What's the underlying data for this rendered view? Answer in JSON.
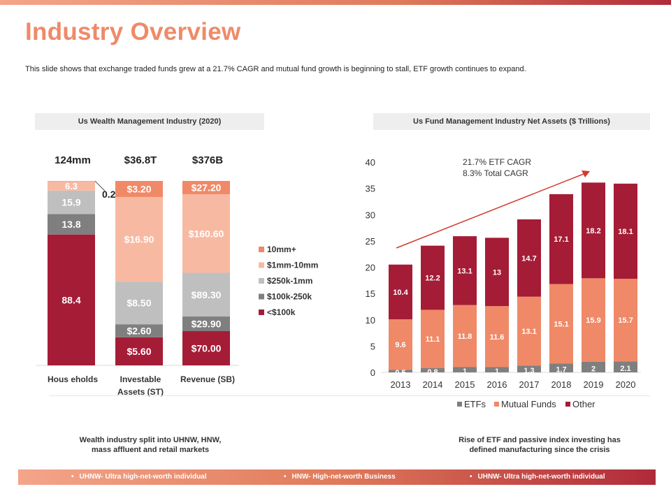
{
  "title": "Industry Overview",
  "subtitle": "This slide shows that exchange traded funds grew at a 21.7% CAGR and mutual fund growth is beginning to stall, ETF growth continues to expand.",
  "colors": {
    "accent": "#ef8a68",
    "lt100k": "#a51c36",
    "k100_250": "#7f7f7f",
    "k250_1m": "#bfbfbf",
    "m1_10": "#f8b9a2",
    "m10plus": "#f08967",
    "etf": "#7f7f7f",
    "mutual": "#f08967",
    "other": "#a51c36"
  },
  "left_panel": {
    "header": "Us Wealth Management Industry (2020)",
    "caption_line1": "Wealth industry split into UHNW, HNW,",
    "caption_line2": "mass affluent and retail markets"
  },
  "right_panel": {
    "header": "Us Fund Management Industry Net Assets ($ Trillions)",
    "caption_line1": "Rise of ETF and passive index investing has",
    "caption_line2": "defined manufacturing since the crisis"
  },
  "footer": {
    "items": [
      "UHNW- Ultra high-net-worth individual",
      "HNW- High-net-worth Business",
      "UHNW- Ultra high-net-worth individual"
    ]
  },
  "chart_data": [
    {
      "type": "bar",
      "stacked": true,
      "normalized": true,
      "title": "Us Wealth Management Industry (2020)",
      "categories": [
        "Hous eholds",
        "Investable Assets (ST)",
        "Revenue (SB)"
      ],
      "category_label_lines": [
        [
          "Hous eholds"
        ],
        [
          "Investable",
          "Assets (ST)"
        ],
        [
          "Revenue (SB)"
        ]
      ],
      "totals": [
        "124mm",
        "$36.8T",
        "$376B"
      ],
      "series": [
        {
          "name": "<$100k",
          "values": [
            88.4,
            5.6,
            70.0
          ],
          "labels": [
            "88.4",
            "$5.60",
            "$70.00"
          ]
        },
        {
          "name": "$100k-250k",
          "values": [
            13.8,
            2.6,
            29.9
          ],
          "labels": [
            "13.8",
            "$2.60",
            "$29.90"
          ]
        },
        {
          "name": "$250k-1mm",
          "values": [
            15.9,
            8.5,
            89.3
          ],
          "labels": [
            "15.9",
            "$8.50",
            "$89.30"
          ]
        },
        {
          "name": "$1mm-10mm",
          "values": [
            6.3,
            16.9,
            160.6
          ],
          "labels": [
            "6.3",
            "$16.90",
            "$160.60"
          ]
        },
        {
          "name": "10mm+",
          "values": [
            0.2,
            3.2,
            27.2
          ],
          "labels": [
            "0.2",
            "$3.20",
            "$27.20"
          ]
        }
      ],
      "legend": "right"
    },
    {
      "type": "bar",
      "stacked": true,
      "title": "Us Fund Management Industry Net Assets ($ Trillions)",
      "categories": [
        "2013",
        "2014",
        "2015",
        "2016",
        "2017",
        "2018",
        "2019",
        "2020"
      ],
      "series": [
        {
          "name": "ETFs",
          "values": [
            0.5,
            0.8,
            1,
            1,
            1.3,
            1.7,
            2,
            2.1
          ]
        },
        {
          "name": "Mutual Funds",
          "values": [
            9.6,
            11.1,
            11.8,
            11.6,
            13.1,
            15.1,
            15.9,
            15.7
          ]
        },
        {
          "name": "Other",
          "values": [
            10.4,
            12.2,
            13.1,
            13,
            14.7,
            17.1,
            18.2,
            18.1
          ]
        }
      ],
      "ylim": [
        0,
        40
      ],
      "yticks": [
        0,
        5,
        10,
        15,
        20,
        25,
        30,
        35,
        40
      ],
      "annotation": [
        "21.7% ETF CAGR",
        "8.3% Total CAGR"
      ],
      "legend": "bottom"
    }
  ]
}
